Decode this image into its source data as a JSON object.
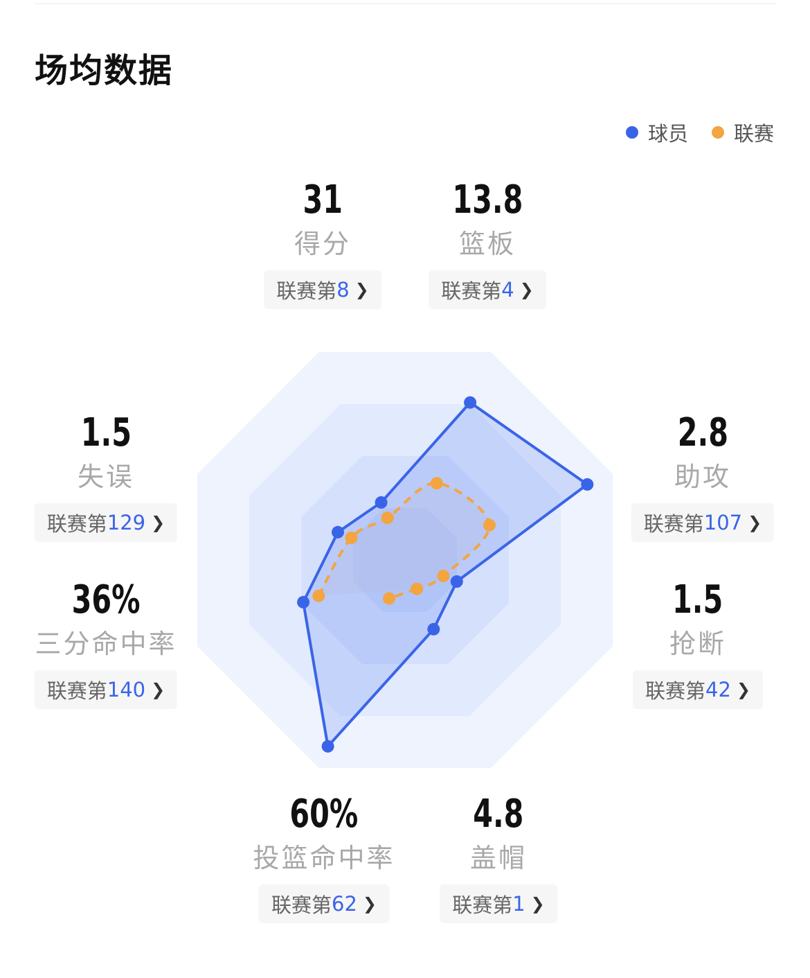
{
  "header": {
    "title": "场均数据"
  },
  "legend": [
    {
      "name": "球员",
      "color": "#3a64e8"
    },
    {
      "name": "联赛",
      "color": "#f2a540"
    }
  ],
  "rank_prefix": "联赛第",
  "stats": [
    {
      "key": "points",
      "value": "31",
      "label": "得分",
      "rank": "8"
    },
    {
      "key": "rebounds",
      "value": "13.8",
      "label": "篮板",
      "rank": "4"
    },
    {
      "key": "assists",
      "value": "2.8",
      "label": "助攻",
      "rank": "107"
    },
    {
      "key": "steals",
      "value": "1.5",
      "label": "抢断",
      "rank": "42"
    },
    {
      "key": "blocks",
      "value": "4.8",
      "label": "盖帽",
      "rank": "1"
    },
    {
      "key": "fg_pct",
      "value": "60%",
      "label": "投篮命中率",
      "rank": "62"
    },
    {
      "key": "three_pct",
      "value": "36%",
      "label": "三分命中率",
      "rank": "140"
    },
    {
      "key": "turnovers",
      "value": "1.5",
      "label": "失误",
      "rank": "129"
    }
  ],
  "chart_data": {
    "type": "radar",
    "axes": [
      "得分",
      "篮板",
      "助攻",
      "抢断",
      "盖帽",
      "投篮命中率",
      "三分命中率",
      "失误"
    ],
    "series": [
      {
        "name": "球员",
        "color": "#3a64e8",
        "values": [
          0.82,
          0.95,
          0.27,
          0.36,
          0.97,
          0.53,
          0.35,
          0.3
        ]
      },
      {
        "name": "联赛",
        "color": "#f2a540",
        "values": [
          0.4,
          0.44,
          0.2,
          0.15,
          0.2,
          0.45,
          0.28,
          0.22
        ]
      }
    ],
    "max": 1
  }
}
